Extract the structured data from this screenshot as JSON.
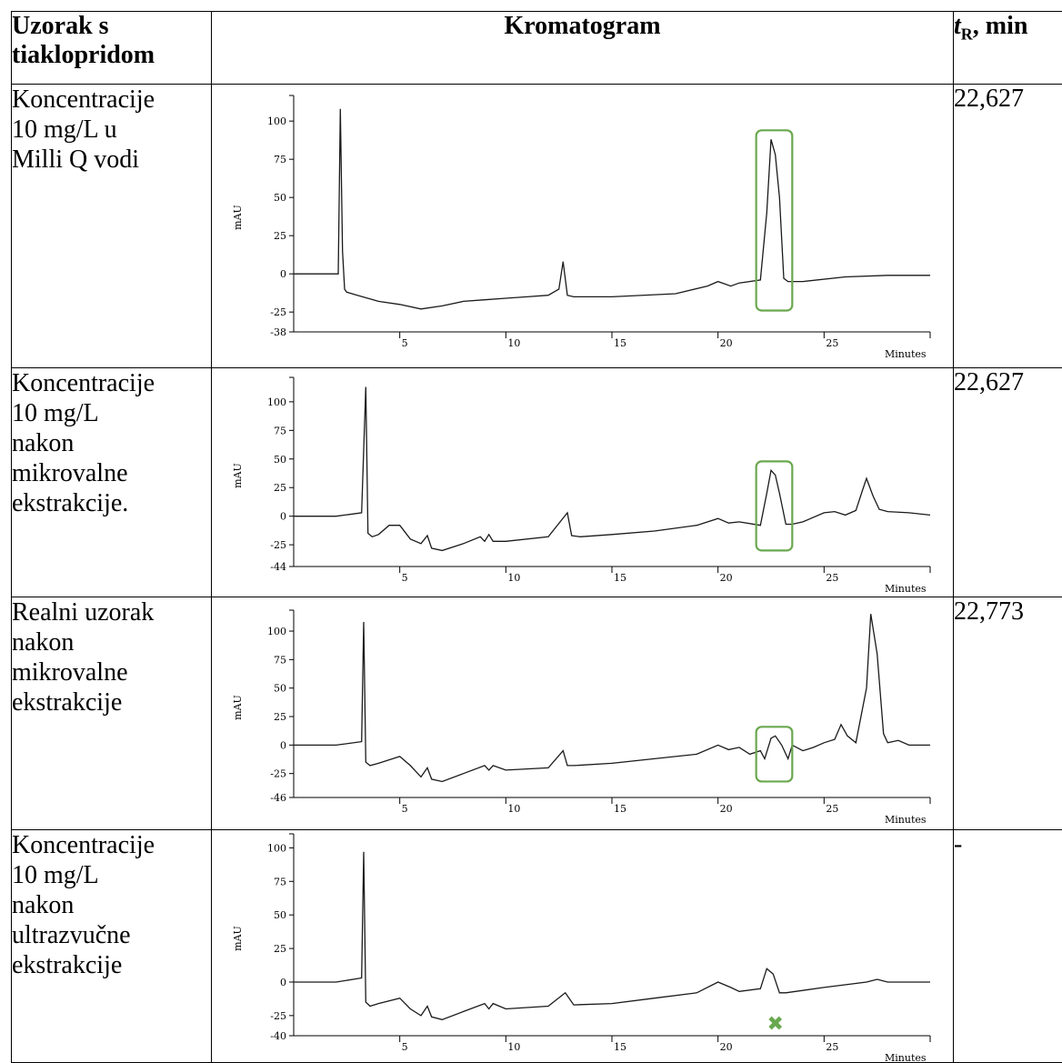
{
  "header": {
    "col1_line1": "Uzorak s",
    "col1_line2": "tiaklopridom",
    "col2": "Kromatogram",
    "col3_t": "t",
    "col3_sub": "R",
    "col3_rest": ", min"
  },
  "rows": [
    {
      "label": [
        "Koncentracije",
        "10 mg/L u",
        "Milli Q vodi"
      ],
      "tr": "22,627",
      "chart": {
        "ylabel": "mAU",
        "xlabel": "Minutes",
        "yticks": [
          "100",
          "75",
          "50",
          "25",
          "0",
          "-25",
          "-38"
        ],
        "yvals": [
          100,
          75,
          50,
          25,
          0,
          -25,
          -38
        ],
        "xticks": [
          "5",
          "10",
          "15",
          "20",
          "25"
        ],
        "marker": "box"
      }
    },
    {
      "label": [
        "Koncentracije",
        "10 mg/L",
        "nakon",
        "mikrovalne",
        "ekstrakcije."
      ],
      "tr": "22,627",
      "chart": {
        "ylabel": "mAU",
        "xlabel": "Minutes",
        "yticks": [
          "100",
          "75",
          "50",
          "25",
          "0",
          "-25",
          "-44"
        ],
        "yvals": [
          100,
          75,
          50,
          25,
          0,
          -25,
          -44
        ],
        "xticks": [
          "5",
          "10",
          "15",
          "20",
          "25"
        ],
        "marker": "box"
      }
    },
    {
      "label": [
        "Realni uzorak",
        "nakon",
        "mikrovalne",
        "ekstrakcije"
      ],
      "tr": "22,773",
      "chart": {
        "ylabel": "mAU",
        "xlabel": "Minutes",
        "yticks": [
          "100",
          "75",
          "50",
          "25",
          "0",
          "-25",
          "-46"
        ],
        "yvals": [
          100,
          75,
          50,
          25,
          0,
          -25,
          -46
        ],
        "xticks": [
          "5",
          "10",
          "15",
          "20",
          "25"
        ],
        "marker": "box"
      }
    },
    {
      "label": [
        "Koncentracije",
        "10 mg/L",
        "nakon",
        "ultrazvučne",
        "ekstrakcije"
      ],
      "tr": "-",
      "chart": {
        "ylabel": "mAU",
        "xlabel": "Minutes",
        "yticks": [
          "100",
          "75",
          "50",
          "25",
          "0",
          "-25",
          "-40"
        ],
        "yvals": [
          100,
          75,
          50,
          25,
          0,
          -25,
          -40
        ],
        "xticks": [
          "5",
          "10",
          "15",
          "20",
          "25"
        ],
        "marker": "x",
        "marker_glyph": "✖"
      }
    }
  ],
  "colors": {
    "highlight": "#6aa84f",
    "trace": "#1a1a1a"
  },
  "chart_data": [
    {
      "type": "line",
      "ylabel": "mAU",
      "xlabel": "Minutes",
      "ylim": [
        -38,
        112
      ],
      "xlim": [
        0,
        30
      ],
      "x": [
        0,
        2.1,
        2.2,
        2.3,
        2.4,
        2.5,
        3,
        4,
        5,
        6,
        7,
        8,
        9,
        10,
        11,
        12,
        12.5,
        12.7,
        12.9,
        13.2,
        15,
        18,
        19.5,
        20,
        20.6,
        21,
        22,
        22.3,
        22.5,
        22.7,
        22.9,
        23.1,
        23.3,
        24,
        26,
        28,
        30
      ],
      "y": [
        0,
        0,
        108,
        15,
        -10,
        -12,
        -14,
        -18,
        -20,
        -23,
        -21,
        -18,
        -17,
        -16,
        -15,
        -14,
        -10,
        8,
        -14,
        -15,
        -15,
        -13,
        -8,
        -5,
        -8,
        -6,
        -4,
        40,
        88,
        78,
        50,
        -3,
        -5,
        -5,
        -2,
        -1,
        -1
      ]
    },
    {
      "type": "line",
      "ylabel": "mAU",
      "xlabel": "Minutes",
      "ylim": [
        -44,
        115
      ],
      "xlim": [
        0,
        30
      ],
      "x": [
        0,
        2,
        3.2,
        3.4,
        3.5,
        3.7,
        4,
        4.5,
        5,
        5.5,
        6,
        6.3,
        6.5,
        7,
        8,
        8.8,
        9,
        9.2,
        9.4,
        10,
        12,
        12.9,
        13.1,
        13.5,
        15,
        17,
        19,
        20,
        20.5,
        21,
        22,
        22.3,
        22.5,
        22.7,
        22.9,
        23.2,
        23.5,
        24,
        25,
        25.5,
        26,
        26.5,
        26.8,
        27,
        27.3,
        27.6,
        28,
        29,
        30
      ],
      "y": [
        0,
        0,
        3,
        113,
        -15,
        -18,
        -16,
        -8,
        -8,
        -20,
        -24,
        -17,
        -28,
        -30,
        -24,
        -18,
        -22,
        -16,
        -22,
        -22,
        -18,
        3,
        -17,
        -18,
        -16,
        -13,
        -8,
        -2,
        -6,
        -5,
        -8,
        20,
        40,
        36,
        20,
        -7,
        -7,
        -5,
        3,
        4,
        1,
        5,
        22,
        33,
        18,
        6,
        4,
        3,
        1
      ]
    },
    {
      "type": "line",
      "ylabel": "mAU",
      "xlabel": "Minutes",
      "ylim": [
        -46,
        112
      ],
      "xlim": [
        0,
        30
      ],
      "x": [
        0,
        2,
        3.2,
        3.3,
        3.4,
        3.6,
        4,
        5,
        5.5,
        6,
        6.3,
        6.5,
        7,
        8,
        9,
        9.2,
        9.4,
        10,
        12,
        12.7,
        12.9,
        13.2,
        15,
        17,
        19,
        20,
        20.5,
        21,
        21.5,
        22,
        22.2,
        22.5,
        22.7,
        23,
        23.3,
        23.5,
        24,
        24.5,
        25,
        25.5,
        25.8,
        26.1,
        26.5,
        27,
        27.2,
        27.5,
        27.8,
        28,
        28.5,
        29,
        30
      ],
      "y": [
        0,
        0,
        3,
        108,
        -15,
        -18,
        -16,
        -10,
        -18,
        -28,
        -20,
        -30,
        -32,
        -25,
        -18,
        -22,
        -18,
        -22,
        -20,
        -5,
        -18,
        -18,
        -16,
        -12,
        -8,
        0,
        -4,
        -2,
        -8,
        -5,
        -12,
        6,
        8,
        0,
        -12,
        0,
        -5,
        -2,
        2,
        5,
        18,
        8,
        2,
        50,
        115,
        80,
        10,
        2,
        4,
        0,
        0
      ]
    },
    {
      "type": "line",
      "ylabel": "mAU",
      "xlabel": "Minutes",
      "ylim": [
        -40,
        105
      ],
      "xlim": [
        0,
        30
      ],
      "x": [
        0,
        2,
        3.2,
        3.3,
        3.4,
        3.6,
        4,
        5,
        5.5,
        6,
        6.3,
        6.5,
        7,
        8,
        9,
        9.2,
        9.4,
        10,
        12,
        12.8,
        13.2,
        15,
        17,
        19,
        20,
        20.6,
        21,
        22,
        22.3,
        22.6,
        22.9,
        23.2,
        25,
        27,
        27.5,
        28,
        30
      ],
      "y": [
        0,
        0,
        3,
        97,
        -15,
        -18,
        -16,
        -12,
        -20,
        -25,
        -18,
        -26,
        -28,
        -22,
        -16,
        -20,
        -16,
        -20,
        -18,
        -8,
        -17,
        -16,
        -12,
        -8,
        0,
        -4,
        -7,
        -5,
        10,
        6,
        -8,
        -8,
        -4,
        0,
        2,
        0,
        0
      ]
    }
  ]
}
